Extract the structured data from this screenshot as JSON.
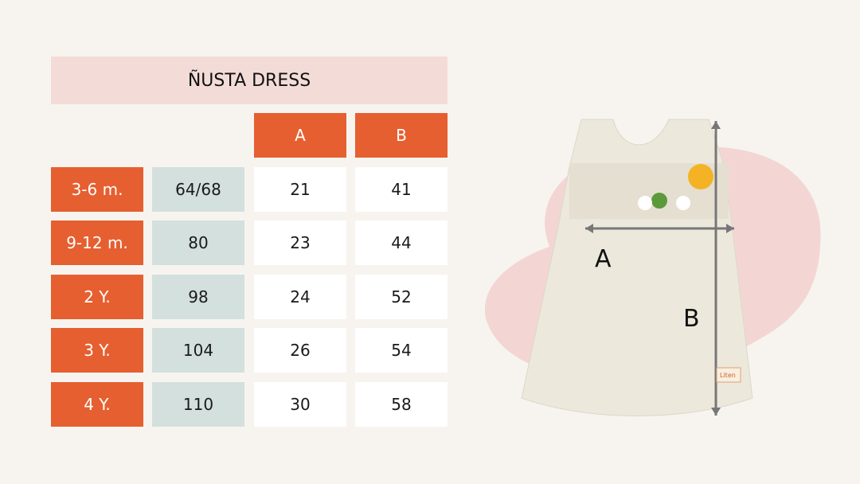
{
  "title": "ÑUSTA DRESS",
  "columns": [
    "A",
    "B"
  ],
  "rows": [
    {
      "age": "3-6 m.",
      "size": "64/68",
      "a": "21",
      "b": "41"
    },
    {
      "age": "9-12 m.",
      "size": "80",
      "a": "23",
      "b": "44"
    },
    {
      "age": "2 Y.",
      "size": "98",
      "a": "24",
      "b": "52"
    },
    {
      "age": "3 Y.",
      "size": "104",
      "a": "26",
      "b": "54"
    },
    {
      "age": "4 Y.",
      "size": "110",
      "a": "30",
      "b": "58"
    }
  ],
  "figure": {
    "label_a": "A",
    "label_b": "B",
    "tag_text": "Liten"
  },
  "colors": {
    "header": "#e65f30",
    "size_cell": "#d3e0dd",
    "title_bg": "#f3dcd8",
    "blob": "#f3d6d3"
  }
}
